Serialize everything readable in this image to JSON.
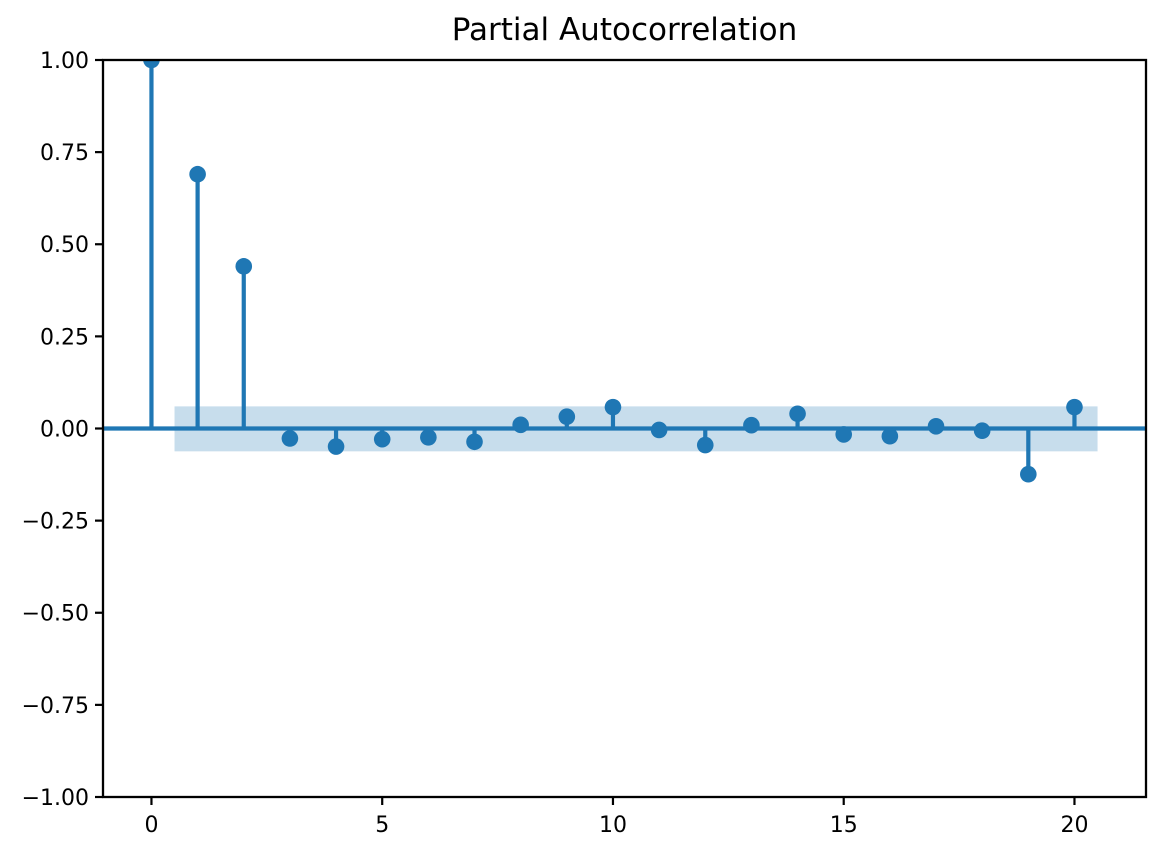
{
  "figure": {
    "background": "#ffffff"
  },
  "chart_data": {
    "type": "stem",
    "title": "Partial Autocorrelation",
    "xlabel": "",
    "ylabel": "",
    "x": [
      0,
      1,
      2,
      3,
      4,
      5,
      6,
      7,
      8,
      9,
      10,
      11,
      12,
      13,
      14,
      15,
      16,
      17,
      18,
      19,
      20
    ],
    "values": [
      1.0,
      0.69,
      0.44,
      -0.027,
      -0.049,
      -0.029,
      -0.024,
      -0.036,
      0.01,
      0.032,
      0.058,
      -0.004,
      -0.045,
      0.009,
      0.04,
      -0.016,
      -0.021,
      0.006,
      -0.006,
      -0.124,
      0.058
    ],
    "confidence_band": {
      "upper": 0.06,
      "lower": -0.062,
      "x_start": 0.5,
      "x_end": 20.5
    },
    "xlim": [
      -1.05,
      21.55
    ],
    "ylim": [
      -1.0,
      1.0
    ],
    "xticks": [
      0,
      5,
      10,
      15,
      20
    ],
    "xtick_labels": [
      "0",
      "5",
      "10",
      "15",
      "20"
    ],
    "yticks": [
      1.0,
      0.75,
      0.5,
      0.25,
      0.0,
      -0.25,
      -0.5,
      -0.75,
      -1.0
    ],
    "ytick_labels": [
      "1.00",
      "0.75",
      "0.50",
      "0.25",
      "0.00",
      "−0.25",
      "−0.50",
      "−0.75",
      "−1.00"
    ],
    "grid": false,
    "legend": null,
    "colors": {
      "stem": "#1f77b4",
      "marker": "#1f77b4",
      "band": "#1f77b4",
      "band_opacity": 0.25,
      "axis": "#000000",
      "text": "#000000",
      "background": "#ffffff"
    }
  }
}
